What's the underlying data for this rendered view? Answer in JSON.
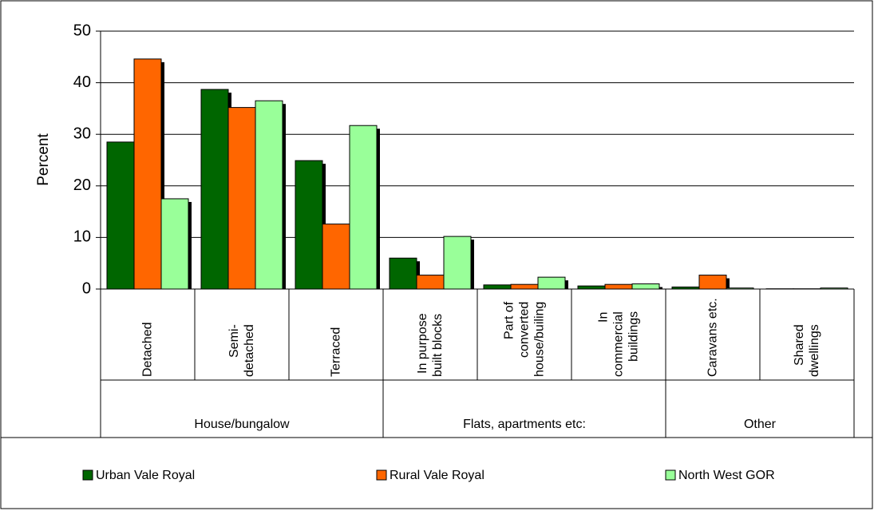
{
  "chart_data": {
    "type": "bar",
    "y_label": "Percent",
    "categories": [
      "Detached",
      "Semi-\ndetached",
      "Terraced",
      "In purpose\nbuilt blocks",
      "Part of\nconverted\nhouse/builing",
      "In\ncommercial\nbuildings",
      "Caravans etc.",
      "Shared\ndwellings"
    ],
    "groups": [
      {
        "label": "House/bungalow",
        "span": 3
      },
      {
        "label": "Flats, apartments etc:",
        "span": 3
      },
      {
        "label": "Other",
        "span": 2
      }
    ],
    "series": [
      {
        "name": "Urban Vale Royal",
        "color": "#006600",
        "values": [
          28.5,
          38.7,
          24.9,
          6.0,
          0.8,
          0.6,
          0.4,
          0.05
        ]
      },
      {
        "name": "Rural Vale Royal",
        "color": "#ff6600",
        "values": [
          44.6,
          35.2,
          12.6,
          2.7,
          0.9,
          0.9,
          2.7,
          0.05
        ]
      },
      {
        "name": "North West GOR",
        "color": "#99ff99",
        "values": [
          17.5,
          36.5,
          31.7,
          10.2,
          2.3,
          1.0,
          0.2,
          0.2
        ]
      }
    ],
    "ylim": [
      0,
      50
    ],
    "yticks": [
      0,
      10,
      20,
      30,
      40,
      50
    ],
    "grid": true,
    "legend": "bottom"
  }
}
